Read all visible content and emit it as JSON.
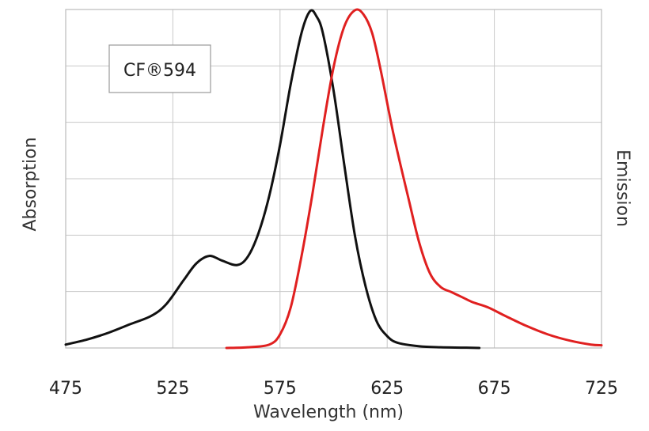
{
  "chart_data": {
    "type": "line",
    "title": "",
    "xlabel": "Wavelength (nm)",
    "ylabel_left": "Absorption",
    "ylabel_right": "Emission",
    "xlim": [
      475,
      725
    ],
    "ylim": [
      0,
      1
    ],
    "x_ticks": [
      "475",
      "525",
      "575",
      "625",
      "675",
      "725"
    ],
    "grid": true,
    "legend": {
      "text": "CF®594",
      "position": "top-left"
    },
    "series": [
      {
        "name": "Absorption",
        "color": "#111111",
        "points": [
          [
            475,
            0.01
          ],
          [
            485,
            0.025
          ],
          [
            495,
            0.045
          ],
          [
            505,
            0.07
          ],
          [
            515,
            0.095
          ],
          [
            522,
            0.13
          ],
          [
            530,
            0.2
          ],
          [
            536,
            0.25
          ],
          [
            542,
            0.272
          ],
          [
            548,
            0.258
          ],
          [
            555,
            0.245
          ],
          [
            560,
            0.27
          ],
          [
            565,
            0.34
          ],
          [
            570,
            0.45
          ],
          [
            575,
            0.6
          ],
          [
            580,
            0.78
          ],
          [
            585,
            0.93
          ],
          [
            589,
            0.995
          ],
          [
            592,
            0.98
          ],
          [
            595,
            0.93
          ],
          [
            600,
            0.76
          ],
          [
            605,
            0.54
          ],
          [
            610,
            0.33
          ],
          [
            615,
            0.18
          ],
          [
            620,
            0.08
          ],
          [
            625,
            0.035
          ],
          [
            630,
            0.015
          ],
          [
            640,
            0.005
          ],
          [
            650,
            0.002
          ],
          [
            660,
            0.001
          ],
          [
            668,
            0.0
          ]
        ]
      },
      {
        "name": "Emission",
        "color": "#e02020",
        "points": [
          [
            550,
            0.0
          ],
          [
            560,
            0.002
          ],
          [
            570,
            0.01
          ],
          [
            575,
            0.04
          ],
          [
            580,
            0.12
          ],
          [
            585,
            0.27
          ],
          [
            590,
            0.45
          ],
          [
            595,
            0.65
          ],
          [
            600,
            0.83
          ],
          [
            605,
            0.95
          ],
          [
            610,
            0.998
          ],
          [
            614,
            0.985
          ],
          [
            618,
            0.93
          ],
          [
            622,
            0.82
          ],
          [
            628,
            0.63
          ],
          [
            635,
            0.44
          ],
          [
            640,
            0.31
          ],
          [
            645,
            0.22
          ],
          [
            650,
            0.18
          ],
          [
            655,
            0.165
          ],
          [
            660,
            0.15
          ],
          [
            665,
            0.135
          ],
          [
            672,
            0.12
          ],
          [
            680,
            0.095
          ],
          [
            690,
            0.065
          ],
          [
            700,
            0.04
          ],
          [
            710,
            0.022
          ],
          [
            720,
            0.01
          ],
          [
            725,
            0.008
          ]
        ]
      }
    ]
  }
}
